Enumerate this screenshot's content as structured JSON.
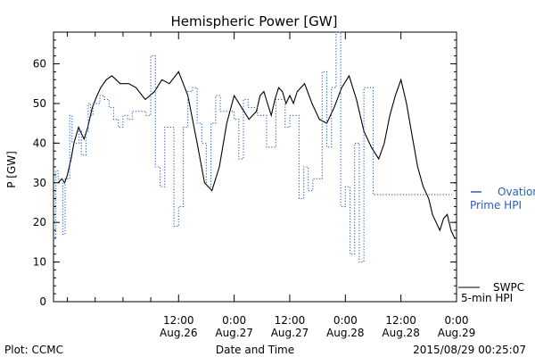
{
  "chart_data": {
    "type": "line",
    "title": "Hemispheric Power [GW]",
    "ylabel": "P [GW]",
    "xlabel": "Date and Time",
    "ylim": [
      0,
      68
    ],
    "xlim": [
      "2015-08-25T09:00",
      "2015-08-29T00:00"
    ],
    "yticks": [
      0,
      10,
      20,
      30,
      40,
      50,
      60
    ],
    "yticks_minor_step": 2,
    "xticks": [
      {
        "at": "2015-08-25T12:00",
        "label": ""
      },
      {
        "at": "2015-08-25T18:00",
        "label": ""
      },
      {
        "at": "2015-08-26T00:00",
        "label": ""
      },
      {
        "at": "2015-08-26T06:00",
        "label": ""
      },
      {
        "at": "2015-08-26T12:00",
        "label": "12:00\nAug.26"
      },
      {
        "at": "2015-08-27T00:00",
        "label": "0:00\nAug.27"
      },
      {
        "at": "2015-08-27T12:00",
        "label": "12:00\nAug.27"
      },
      {
        "at": "2015-08-28T00:00",
        "label": "0:00\nAug.28"
      },
      {
        "at": "2015-08-28T12:00",
        "label": "12:00\nAug.28"
      },
      {
        "at": "2015-08-29T00:00",
        "label": "0:00\nAug.29"
      }
    ],
    "grid": false,
    "series": [
      {
        "name_lines": [
          "SWPC",
          "5-min HPI"
        ],
        "color": "#000000",
        "style": "solid",
        "x": [
          "2015-08-25T10:00",
          "2015-08-25T10:48",
          "2015-08-25T11:24",
          "2015-08-25T12:00",
          "2015-08-25T12:48",
          "2015-08-25T13:24",
          "2015-08-25T14:24",
          "2015-08-25T15:36",
          "2015-08-25T16:24",
          "2015-08-25T17:24",
          "2015-08-25T18:24",
          "2015-08-25T19:12",
          "2015-08-25T20:24",
          "2015-08-25T21:36",
          "2015-08-25T23:24",
          "2015-08-26T01:12",
          "2015-08-26T02:48",
          "2015-08-26T04:48",
          "2015-08-26T06:48",
          "2015-08-26T08:24",
          "2015-08-26T10:00",
          "2015-08-26T12:00",
          "2015-08-26T14:00",
          "2015-08-26T16:00",
          "2015-08-26T17:36",
          "2015-08-26T19:12",
          "2015-08-26T20:48",
          "2015-08-26T22:24",
          "2015-08-27T00:00",
          "2015-08-27T01:36",
          "2015-08-27T03:12",
          "2015-08-27T04:48",
          "2015-08-27T05:36",
          "2015-08-27T06:24",
          "2015-08-27T07:12",
          "2015-08-27T08:00",
          "2015-08-27T08:48",
          "2015-08-27T09:36",
          "2015-08-27T10:24",
          "2015-08-27T11:12",
          "2015-08-27T12:00",
          "2015-08-27T12:48",
          "2015-08-27T13:36",
          "2015-08-27T15:12",
          "2015-08-27T16:48",
          "2015-08-27T18:24",
          "2015-08-27T20:00",
          "2015-08-27T21:36",
          "2015-08-27T23:12",
          "2015-08-28T00:48",
          "2015-08-28T02:24",
          "2015-08-28T04:00",
          "2015-08-28T05:36",
          "2015-08-28T07:12",
          "2015-08-28T08:24",
          "2015-08-28T09:36",
          "2015-08-28T10:48",
          "2015-08-28T12:00",
          "2015-08-28T13:12",
          "2015-08-28T14:24",
          "2015-08-28T15:36",
          "2015-08-28T16:48",
          "2015-08-28T18:00",
          "2015-08-28T18:48",
          "2015-08-28T19:36",
          "2015-08-28T20:24",
          "2015-08-28T21:12",
          "2015-08-28T22:00",
          "2015-08-28T22:48",
          "2015-08-28T23:36",
          "2015-08-29T00:00"
        ],
        "y": [
          30,
          31,
          30,
          32,
          36,
          40,
          44,
          41,
          44,
          49,
          52,
          54,
          56,
          57,
          55,
          55,
          54,
          51,
          53,
          56,
          55,
          58,
          52,
          40,
          30,
          28,
          34,
          45,
          52,
          49,
          46,
          48,
          52,
          53,
          50,
          47,
          51,
          54,
          53,
          50,
          52,
          50,
          53,
          55,
          50,
          46,
          45,
          49,
          54,
          57,
          51,
          43,
          39,
          36,
          40,
          47,
          52,
          56,
          50,
          42,
          34,
          29,
          26,
          22,
          20,
          18,
          21,
          22,
          18,
          16,
          16
        ]
      },
      {
        "name_lines": [
          "Ovation",
          "Prime HPI"
        ],
        "color": "#2a5dbb",
        "style": "dotted-step",
        "x": [
          "2015-08-25T08:30",
          "2015-08-25T09:00",
          "2015-08-25T09:30",
          "2015-08-25T10:00",
          "2015-08-25T10:30",
          "2015-08-25T11:00",
          "2015-08-25T11:30",
          "2015-08-25T12:00",
          "2015-08-25T12:30",
          "2015-08-25T13:00",
          "2015-08-25T13:30",
          "2015-08-25T14:00",
          "2015-08-25T14:30",
          "2015-08-25T15:00",
          "2015-08-25T15:30",
          "2015-08-25T16:00",
          "2015-08-25T16:30",
          "2015-08-25T17:00",
          "2015-08-25T17:30",
          "2015-08-25T18:00",
          "2015-08-25T18:30",
          "2015-08-25T19:00",
          "2015-08-25T19:30",
          "2015-08-25T20:00",
          "2015-08-25T21:00",
          "2015-08-25T22:00",
          "2015-08-25T23:00",
          "2015-08-26T00:00",
          "2015-08-26T01:00",
          "2015-08-26T02:00",
          "2015-08-26T03:00",
          "2015-08-26T04:00",
          "2015-08-26T05:00",
          "2015-08-26T06:00",
          "2015-08-26T07:00",
          "2015-08-26T08:00",
          "2015-08-26T09:00",
          "2015-08-26T10:00",
          "2015-08-26T11:00",
          "2015-08-26T12:00",
          "2015-08-26T13:00",
          "2015-08-26T14:00",
          "2015-08-26T15:00",
          "2015-08-26T16:00",
          "2015-08-26T17:00",
          "2015-08-26T18:00",
          "2015-08-26T19:00",
          "2015-08-26T20:00",
          "2015-08-26T21:00",
          "2015-08-26T22:00",
          "2015-08-26T23:00",
          "2015-08-27T00:00",
          "2015-08-27T01:00",
          "2015-08-27T02:00",
          "2015-08-27T03:00",
          "2015-08-27T04:00",
          "2015-08-27T05:00",
          "2015-08-27T06:00",
          "2015-08-27T07:00",
          "2015-08-27T08:00",
          "2015-08-27T09:00",
          "2015-08-27T10:00",
          "2015-08-27T11:00",
          "2015-08-27T12:00",
          "2015-08-27T13:00",
          "2015-08-27T14:00",
          "2015-08-27T15:00",
          "2015-08-27T16:00",
          "2015-08-27T17:00",
          "2015-08-27T18:00",
          "2015-08-27T19:00",
          "2015-08-27T20:00",
          "2015-08-27T21:00",
          "2015-08-27T22:00",
          "2015-08-27T23:00",
          "2015-08-28T00:00",
          "2015-08-28T01:00",
          "2015-08-28T02:00",
          "2015-08-28T03:00",
          "2015-08-28T04:00",
          "2015-08-28T05:00",
          "2015-08-28T06:00",
          "2015-08-28T07:00",
          "2015-08-28T08:00",
          "2015-08-28T09:00",
          "2015-08-28T10:00",
          "2015-08-28T11:00",
          "2015-08-28T12:00",
          "2015-08-28T13:00",
          "2015-08-28T14:00",
          "2015-08-28T15:00",
          "2015-08-28T16:00",
          "2015-08-28T17:00",
          "2015-08-28T18:00",
          "2015-08-28T19:00",
          "2015-08-28T20:00",
          "2015-08-28T21:00",
          "2015-08-28T22:00",
          "2015-08-28T23:00"
        ],
        "y": [
          16,
          16,
          33,
          31,
          31,
          17,
          31,
          31,
          47,
          40,
          40,
          40,
          43,
          37,
          37,
          43,
          50,
          47,
          50,
          50,
          50,
          52,
          52,
          51,
          49,
          46,
          44,
          47,
          46,
          48,
          48,
          48,
          47,
          62,
          34,
          29,
          44,
          44,
          19,
          24,
          44,
          53,
          54,
          45,
          40,
          29,
          45,
          52,
          48,
          48,
          48,
          46,
          36,
          51,
          49,
          49,
          47,
          47,
          39,
          39,
          51,
          51,
          44,
          47,
          47,
          26,
          34,
          28,
          31,
          31,
          58,
          39,
          54,
          68,
          24,
          29,
          12,
          40,
          10,
          54,
          54,
          27,
          27,
          27,
          27,
          27,
          27,
          27,
          27,
          27,
          27,
          27,
          27,
          27,
          27,
          27,
          27,
          27,
          27
        ]
      }
    ]
  },
  "footer": {
    "left": "Plot: CCMC",
    "right": "2015/08/29 00:25:07"
  },
  "legend": {
    "ovation_line1": "Ovation",
    "ovation_line2": "Prime HPI",
    "swpc_line1": "SWPC",
    "swpc_line2": "5-min HPI"
  }
}
